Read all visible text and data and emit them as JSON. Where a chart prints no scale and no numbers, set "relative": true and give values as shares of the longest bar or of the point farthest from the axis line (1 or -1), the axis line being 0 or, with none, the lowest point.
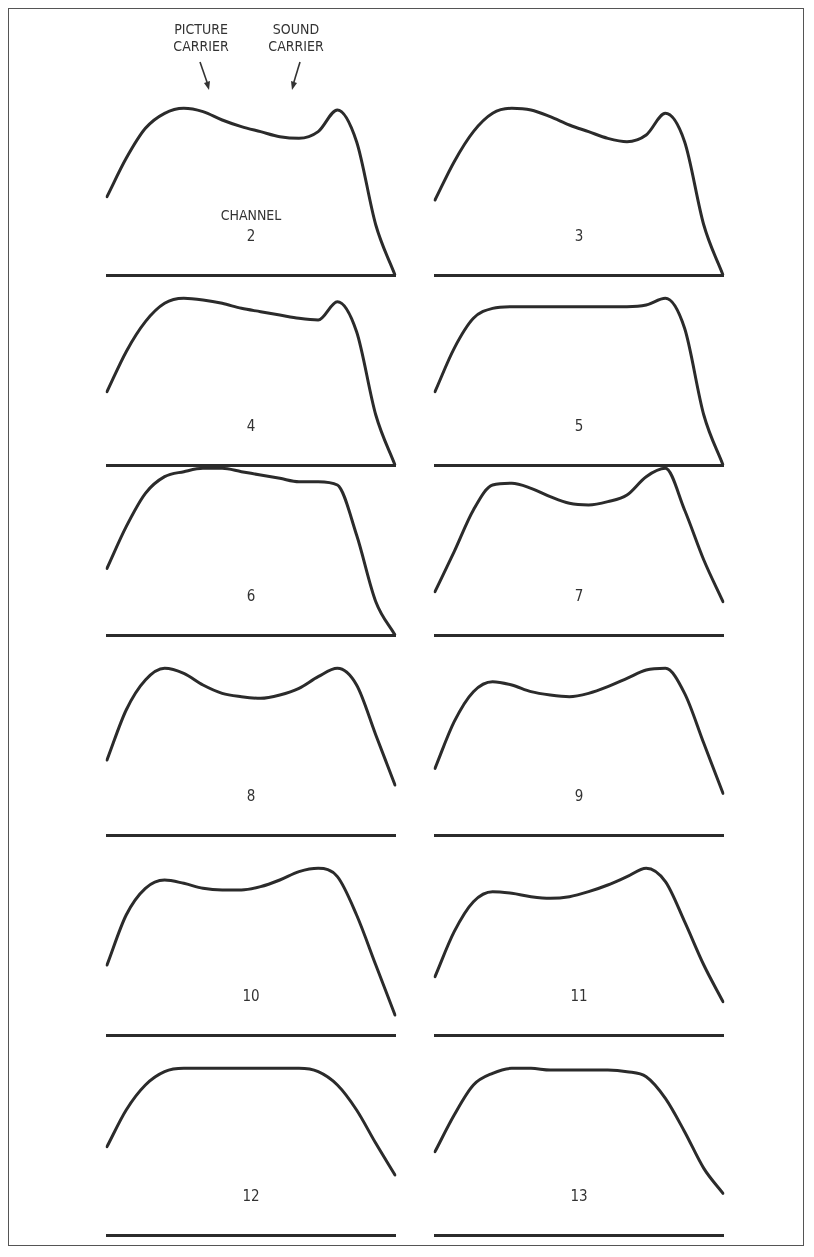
{
  "chart_data": [
    {
      "type": "line",
      "title": "2",
      "annotations": [
        "PICTURE CARRIER",
        "SOUND CARRIER",
        "CHANNEL"
      ],
      "relative": true,
      "grid": false,
      "marker": "none",
      "tick_labels": false,
      "color": "#2b2b2b",
      "categories": [
        null,
        null,
        null,
        null,
        null,
        null,
        null,
        null,
        null,
        null,
        null,
        null,
        null,
        null,
        null,
        null
      ],
      "values": [
        0.47,
        0.7,
        0.88,
        0.97,
        1.0,
        0.98,
        0.93,
        0.89,
        0.86,
        0.83,
        0.82,
        0.86,
        0.99,
        0.8,
        0.3,
        0
      ]
    },
    {
      "type": "line",
      "title": "3",
      "relative": true,
      "grid": false,
      "marker": "none",
      "tick_labels": false,
      "color": "#2b2b2b",
      "categories": [
        null,
        null,
        null,
        null,
        null,
        null,
        null,
        null,
        null,
        null,
        null,
        null,
        null,
        null,
        null,
        null
      ],
      "values": [
        0.45,
        0.68,
        0.86,
        0.97,
        1.0,
        0.99,
        0.95,
        0.9,
        0.86,
        0.82,
        0.8,
        0.84,
        0.97,
        0.8,
        0.3,
        0
      ]
    },
    {
      "type": "line",
      "title": "4",
      "relative": true,
      "grid": false,
      "marker": "none",
      "tick_labels": false,
      "color": "#2b2b2b",
      "categories": [
        null,
        null,
        null,
        null,
        null,
        null,
        null,
        null,
        null,
        null,
        null,
        null,
        null,
        null,
        null,
        null
      ],
      "values": [
        0.44,
        0.68,
        0.86,
        0.97,
        1.0,
        0.99,
        0.97,
        0.94,
        0.92,
        0.9,
        0.88,
        0.87,
        0.98,
        0.8,
        0.3,
        0
      ]
    },
    {
      "type": "line",
      "title": "5",
      "relative": true,
      "grid": false,
      "marker": "none",
      "tick_labels": false,
      "color": "#2b2b2b",
      "categories": [
        null,
        null,
        null,
        null,
        null,
        null,
        null,
        null,
        null,
        null,
        null,
        null,
        null,
        null,
        null,
        null
      ],
      "values": [
        0.44,
        0.7,
        0.88,
        0.94,
        0.95,
        0.95,
        0.95,
        0.95,
        0.95,
        0.95,
        0.95,
        0.96,
        1.0,
        0.82,
        0.3,
        0
      ]
    },
    {
      "type": "line",
      "title": "6",
      "relative": true,
      "grid": false,
      "marker": "none",
      "tick_labels": false,
      "color": "#2b2b2b",
      "categories": [
        null,
        null,
        null,
        null,
        null,
        null,
        null,
        null,
        null,
        null,
        null,
        null,
        null,
        null,
        null,
        null
      ],
      "values": [
        0.4,
        0.65,
        0.85,
        0.95,
        0.98,
        1.0,
        1.0,
        0.98,
        0.96,
        0.94,
        0.92,
        0.92,
        0.9,
        0.6,
        0.2,
        0
      ]
    },
    {
      "type": "line",
      "title": "7",
      "relative": true,
      "grid": false,
      "marker": "none",
      "tick_labels": false,
      "color": "#2b2b2b",
      "categories": [
        null,
        null,
        null,
        null,
        null,
        null,
        null,
        null,
        null,
        null,
        null,
        null,
        null,
        null,
        null,
        null
      ],
      "values": [
        0.26,
        0.5,
        0.75,
        0.9,
        0.91,
        0.88,
        0.83,
        0.79,
        0.78,
        0.8,
        0.84,
        0.95,
        1.0,
        0.75,
        0.45,
        0.2
      ]
    },
    {
      "type": "line",
      "title": "8",
      "relative": true,
      "grid": false,
      "marker": "none",
      "tick_labels": false,
      "color": "#2b2b2b",
      "categories": [
        null,
        null,
        null,
        null,
        null,
        null,
        null,
        null,
        null,
        null,
        null,
        null,
        null,
        null,
        null,
        null
      ],
      "values": [
        0.45,
        0.75,
        0.93,
        1.0,
        0.97,
        0.9,
        0.85,
        0.83,
        0.82,
        0.84,
        0.88,
        0.95,
        1.0,
        0.9,
        0.6,
        0.3
      ]
    },
    {
      "type": "line",
      "title": "9",
      "relative": true,
      "grid": false,
      "marker": "none",
      "tick_labels": false,
      "color": "#2b2b2b",
      "categories": [
        null,
        null,
        null,
        null,
        null,
        null,
        null,
        null,
        null,
        null,
        null,
        null,
        null,
        null,
        null,
        null
      ],
      "values": [
        0.4,
        0.68,
        0.86,
        0.92,
        0.9,
        0.86,
        0.84,
        0.83,
        0.85,
        0.89,
        0.94,
        0.99,
        1.0,
        0.85,
        0.55,
        0.25
      ]
    },
    {
      "type": "line",
      "title": "10",
      "relative": true,
      "grid": false,
      "marker": "none",
      "tick_labels": false,
      "color": "#2b2b2b",
      "categories": [
        null,
        null,
        null,
        null,
        null,
        null,
        null,
        null,
        null,
        null,
        null,
        null,
        null,
        null,
        null,
        null
      ],
      "values": [
        0.42,
        0.72,
        0.88,
        0.93,
        0.91,
        0.88,
        0.87,
        0.87,
        0.89,
        0.93,
        0.98,
        1.0,
        0.95,
        0.72,
        0.42,
        0.12
      ]
    },
    {
      "type": "line",
      "title": "11",
      "relative": true,
      "grid": false,
      "marker": "none",
      "tick_labels": false,
      "color": "#2b2b2b",
      "categories": [
        null,
        null,
        null,
        null,
        null,
        null,
        null,
        null,
        null,
        null,
        null,
        null,
        null,
        null,
        null,
        null
      ],
      "values": [
        0.35,
        0.62,
        0.8,
        0.86,
        0.85,
        0.83,
        0.82,
        0.83,
        0.86,
        0.9,
        0.95,
        1.0,
        0.92,
        0.68,
        0.42,
        0.2
      ]
    },
    {
      "type": "line",
      "title": "12",
      "relative": true,
      "grid": false,
      "marker": "none",
      "tick_labels": false,
      "color": "#2b2b2b",
      "categories": [
        null,
        null,
        null,
        null,
        null,
        null,
        null,
        null,
        null,
        null,
        null,
        null,
        null,
        null,
        null,
        null
      ],
      "values": [
        0.53,
        0.75,
        0.9,
        0.98,
        1.0,
        1.0,
        1.0,
        1.0,
        1.0,
        1.0,
        1.0,
        0.98,
        0.9,
        0.75,
        0.55,
        0.36
      ]
    },
    {
      "type": "line",
      "title": "13",
      "relative": true,
      "grid": false,
      "marker": "none",
      "tick_labels": false,
      "color": "#2b2b2b",
      "categories": [
        null,
        null,
        null,
        null,
        null,
        null,
        null,
        null,
        null,
        null,
        null,
        null,
        null,
        null,
        null,
        null
      ],
      "values": [
        0.5,
        0.72,
        0.9,
        0.97,
        1.0,
        1.0,
        0.99,
        0.99,
        0.99,
        0.99,
        0.98,
        0.95,
        0.82,
        0.62,
        0.4,
        0.25
      ]
    }
  ]
}
